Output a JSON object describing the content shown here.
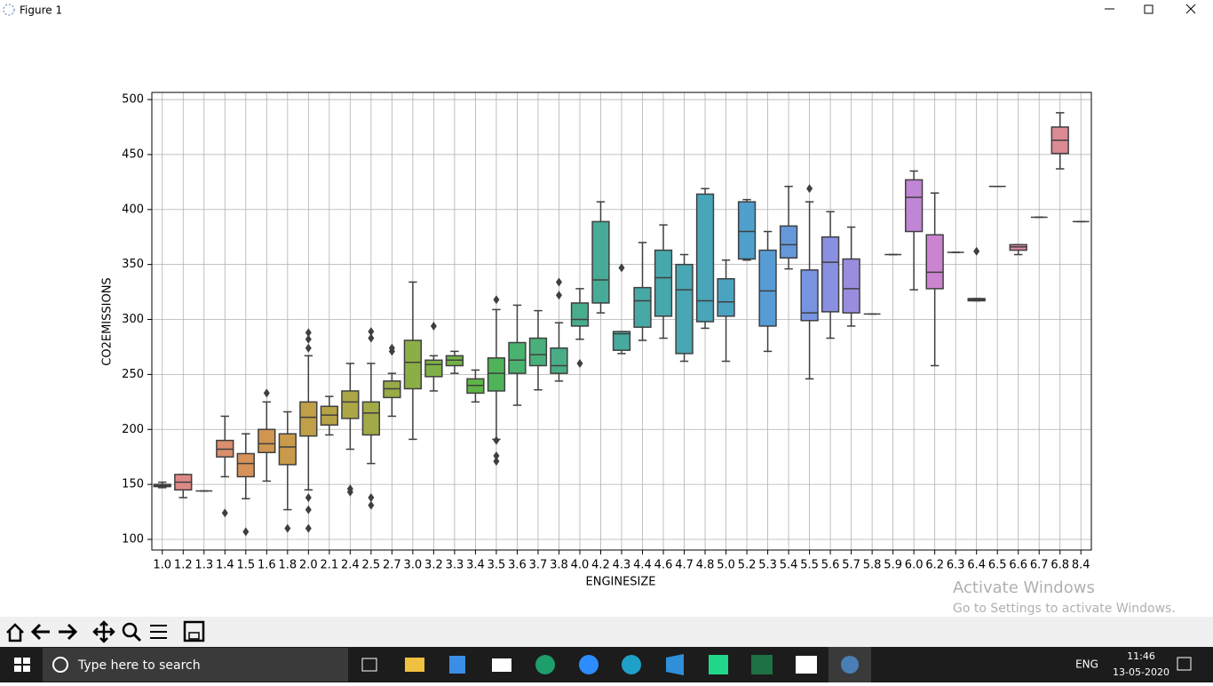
{
  "window": {
    "title": "Figure 1"
  },
  "chart_data": {
    "type": "box",
    "xlabel": "ENGINESIZE",
    "ylabel": "CO2EMISSIONS",
    "categories": [
      "1.0",
      "1.2",
      "1.3",
      "1.4",
      "1.5",
      "1.6",
      "1.8",
      "2.0",
      "2.1",
      "2.4",
      "2.5",
      "2.7",
      "3.0",
      "3.2",
      "3.3",
      "3.4",
      "3.5",
      "3.6",
      "3.7",
      "3.8",
      "4.0",
      "4.2",
      "4.3",
      "4.4",
      "4.6",
      "4.7",
      "4.8",
      "5.0",
      "5.2",
      "5.3",
      "5.4",
      "5.5",
      "5.6",
      "5.7",
      "5.8",
      "5.9",
      "6.0",
      "6.2",
      "6.3",
      "6.4",
      "6.5",
      "6.6",
      "6.7",
      "6.8",
      "8.4"
    ],
    "boxes": [
      {
        "whislo": 147,
        "q1": 148,
        "med": 149,
        "q3": 150,
        "whishi": 152
      },
      {
        "whislo": 138,
        "q1": 145,
        "med": 152,
        "q3": 159,
        "whishi": 159
      },
      {
        "whislo": 144,
        "q1": 144,
        "med": 144,
        "q3": 144,
        "whishi": 144
      },
      {
        "whislo": 157,
        "q1": 175,
        "med": 182,
        "q3": 190,
        "whishi": 212,
        "fliers": [
          124
        ]
      },
      {
        "whislo": 137,
        "q1": 157,
        "med": 169,
        "q3": 178,
        "whishi": 196,
        "fliers": [
          107
        ]
      },
      {
        "whislo": 153,
        "q1": 179,
        "med": 187,
        "q3": 200,
        "whishi": 225,
        "fliers": [
          233
        ]
      },
      {
        "whislo": 127,
        "q1": 168,
        "med": 184,
        "q3": 196,
        "whishi": 216,
        "fliers": [
          110
        ]
      },
      {
        "whislo": 145,
        "q1": 194,
        "med": 211,
        "q3": 225,
        "whishi": 267,
        "fliers": [
          274,
          282,
          288,
          138,
          127,
          110
        ]
      },
      {
        "whislo": 195,
        "q1": 204,
        "med": 213,
        "q3": 221,
        "whishi": 230
      },
      {
        "whislo": 182,
        "q1": 210,
        "med": 225,
        "q3": 235,
        "whishi": 260,
        "fliers": [
          143,
          146
        ]
      },
      {
        "whislo": 169,
        "q1": 195,
        "med": 215,
        "q3": 225,
        "whishi": 260,
        "fliers": [
          289,
          283,
          138,
          131
        ]
      },
      {
        "whislo": 212,
        "q1": 229,
        "med": 237,
        "q3": 244,
        "whishi": 251,
        "fliers": [
          271,
          274
        ]
      },
      {
        "whislo": 191,
        "q1": 237,
        "med": 261,
        "q3": 281,
        "whishi": 334
      },
      {
        "whislo": 235,
        "q1": 248,
        "med": 259,
        "q3": 263,
        "whishi": 267,
        "fliers": [
          294
        ]
      },
      {
        "whislo": 251,
        "q1": 258,
        "med": 263,
        "q3": 267,
        "whishi": 271
      },
      {
        "whislo": 225,
        "q1": 233,
        "med": 240,
        "q3": 246,
        "whishi": 254
      },
      {
        "whislo": 191,
        "q1": 235,
        "med": 251,
        "q3": 265,
        "whishi": 309,
        "fliers": [
          318,
          190,
          176,
          171
        ]
      },
      {
        "whislo": 222,
        "q1": 251,
        "med": 263,
        "q3": 279,
        "whishi": 313
      },
      {
        "whislo": 236,
        "q1": 258,
        "med": 268,
        "q3": 283,
        "whishi": 308
      },
      {
        "whislo": 244,
        "q1": 251,
        "med": 258,
        "q3": 274,
        "whishi": 297,
        "fliers": [
          322,
          334
        ]
      },
      {
        "whislo": 282,
        "q1": 294,
        "med": 300,
        "q3": 315,
        "whishi": 328,
        "fliers": [
          260
        ]
      },
      {
        "whislo": 306,
        "q1": 315,
        "med": 336,
        "q3": 389,
        "whishi": 407
      },
      {
        "whislo": 269,
        "q1": 272,
        "med": 287,
        "q3": 289,
        "whishi": 289,
        "fliers": [
          347
        ]
      },
      {
        "whislo": 281,
        "q1": 293,
        "med": 317,
        "q3": 329,
        "whishi": 370
      },
      {
        "whislo": 283,
        "q1": 303,
        "med": 338,
        "q3": 363,
        "whishi": 386
      },
      {
        "whislo": 262,
        "q1": 269,
        "med": 327,
        "q3": 350,
        "whishi": 359
      },
      {
        "whislo": 292,
        "q1": 298,
        "med": 317,
        "q3": 414,
        "whishi": 419
      },
      {
        "whislo": 262,
        "q1": 303,
        "med": 316,
        "q3": 337,
        "whishi": 354
      },
      {
        "whislo": 354,
        "q1": 355,
        "med": 380,
        "q3": 407,
        "whishi": 409
      },
      {
        "whislo": 271,
        "q1": 294,
        "med": 326,
        "q3": 363,
        "whishi": 380
      },
      {
        "whislo": 346,
        "q1": 356,
        "med": 368,
        "q3": 385,
        "whishi": 421
      },
      {
        "whislo": 246,
        "q1": 299,
        "med": 306,
        "q3": 345,
        "whishi": 407,
        "fliers": [
          419
        ]
      },
      {
        "whislo": 283,
        "q1": 307,
        "med": 352,
        "q3": 375,
        "whishi": 398
      },
      {
        "whislo": 294,
        "q1": 306,
        "med": 328,
        "q3": 355,
        "whishi": 384
      },
      {
        "whislo": 305,
        "q1": 305,
        "med": 305,
        "q3": 305,
        "whishi": 305
      },
      {
        "whislo": 359,
        "q1": 359,
        "med": 359,
        "q3": 359,
        "whishi": 359
      },
      {
        "whislo": 327,
        "q1": 380,
        "med": 411,
        "q3": 427,
        "whishi": 435
      },
      {
        "whislo": 258,
        "q1": 328,
        "med": 343,
        "q3": 377,
        "whishi": 415
      },
      {
        "whislo": 361,
        "q1": 361,
        "med": 361,
        "q3": 361,
        "whishi": 361
      },
      {
        "whislo": 317,
        "q1": 317,
        "med": 318,
        "q3": 319,
        "whishi": 319,
        "fliers": [
          362
        ]
      },
      {
        "whislo": 421,
        "q1": 421,
        "med": 421,
        "q3": 421,
        "whishi": 421
      },
      {
        "whislo": 359,
        "q1": 363,
        "med": 366,
        "q3": 368,
        "whishi": 368
      },
      {
        "whislo": 393,
        "q1": 393,
        "med": 393,
        "q3": 393,
        "whishi": 393
      },
      {
        "whislo": 437,
        "q1": 451,
        "med": 463,
        "q3": 475,
        "whishi": 488
      },
      {
        "whislo": 389,
        "q1": 389,
        "med": 389,
        "q3": 389,
        "whishi": 389
      }
    ],
    "colors": [
      "#d98c8c",
      "#dd8a87",
      "#da8c7a",
      "#d98e6c",
      "#d7925a",
      "#d0954f",
      "#c89a4a",
      "#bf9f47",
      "#b6a347",
      "#aca647",
      "#a2a947",
      "#98ab47",
      "#8cae47",
      "#7fb047",
      "#70b247",
      "#5fb447",
      "#4fb35a",
      "#4bb16e",
      "#4ab07b",
      "#49ae86",
      "#48ad8f",
      "#47ab97",
      "#47aa9e",
      "#47a9a5",
      "#47a8ab",
      "#48a7b2",
      "#49a5b9",
      "#4ba3c2",
      "#4fa0cc",
      "#589cd5",
      "#6598db",
      "#7794e0",
      "#8a90e1",
      "#9a8ddf",
      "#a98adc",
      "#b587d9",
      "#c185d6",
      "#cc84d0",
      "#d483c6",
      "#d985bb",
      "#dc86b0",
      "#dd88a6",
      "#dd899c",
      "#dc8a94",
      "#db8b8e"
    ],
    "ylim": [
      90.3,
      506.5
    ],
    "yticks": [
      100,
      150,
      200,
      250,
      300,
      350,
      400,
      450,
      500
    ],
    "grid": true
  },
  "watermark": {
    "title": "Activate Windows",
    "subtitle": "Go to Settings to activate Windows."
  },
  "taskbar": {
    "search": "Type here to search",
    "language": "ENG",
    "time": "11:46",
    "date": "13-05-2020"
  }
}
